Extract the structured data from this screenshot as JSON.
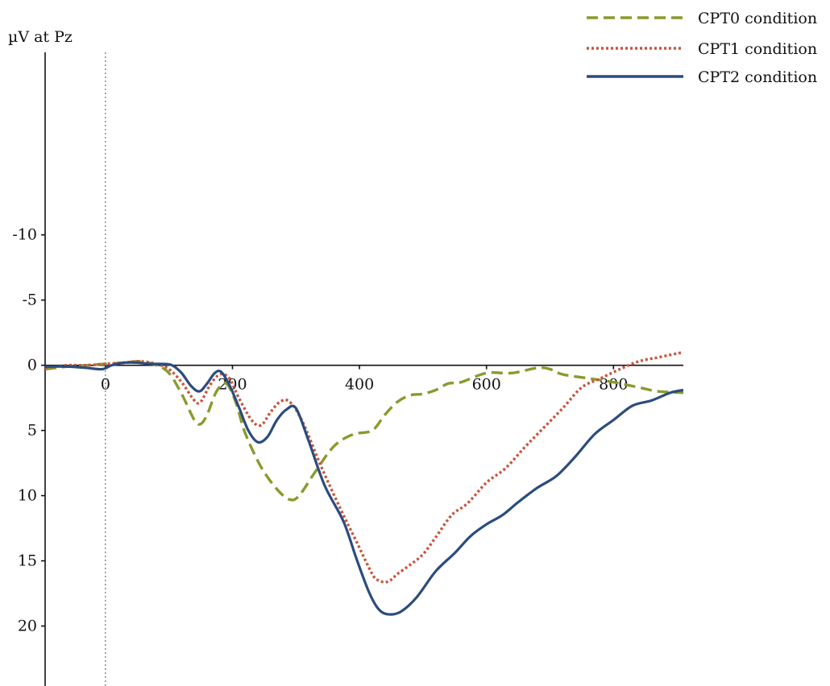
{
  "chart_data": {
    "type": "line",
    "title": "",
    "xlabel": "",
    "ylabel": "µV at Pz",
    "y_axis_inverted": true,
    "xlim": [
      -95,
      910
    ],
    "ylim": [
      -24,
      24.6
    ],
    "x_ticks": [
      0,
      200,
      400,
      600,
      800
    ],
    "x_tick_labels": [
      "0",
      "200",
      "400",
      "600",
      "800"
    ],
    "y_ticks": [
      -10,
      -5,
      0,
      5,
      10,
      15,
      20
    ],
    "y_tick_labels": [
      "-10",
      "-5",
      "0",
      "5",
      "10",
      "15",
      "20"
    ],
    "vertical_reference_line_x": 0,
    "grid": false,
    "legend_position": "top-right",
    "series": [
      {
        "name": "CPT0 condition",
        "color": "#8a9a2c",
        "line_style": "dashed",
        "points": [
          [
            -95,
            0.3
          ],
          [
            -60,
            0.1
          ],
          [
            -30,
            0.0
          ],
          [
            0,
            -0.1
          ],
          [
            30,
            -0.2
          ],
          [
            55,
            -0.3
          ],
          [
            80,
            0.0
          ],
          [
            100,
            0.6
          ],
          [
            120,
            2.2
          ],
          [
            140,
            4.2
          ],
          [
            150,
            4.5
          ],
          [
            160,
            3.8
          ],
          [
            175,
            2.0
          ],
          [
            190,
            1.4
          ],
          [
            205,
            2.8
          ],
          [
            220,
            5.2
          ],
          [
            245,
            7.8
          ],
          [
            270,
            9.5
          ],
          [
            290,
            10.3
          ],
          [
            305,
            10.0
          ],
          [
            330,
            8.2
          ],
          [
            360,
            6.2
          ],
          [
            390,
            5.3
          ],
          [
            420,
            5.0
          ],
          [
            440,
            3.8
          ],
          [
            460,
            2.8
          ],
          [
            480,
            2.3
          ],
          [
            500,
            2.2
          ],
          [
            520,
            1.9
          ],
          [
            540,
            1.4
          ],
          [
            560,
            1.3
          ],
          [
            600,
            0.6
          ],
          [
            640,
            0.6
          ],
          [
            680,
            0.2
          ],
          [
            700,
            0.3
          ],
          [
            720,
            0.7
          ],
          [
            760,
            1.0
          ],
          [
            800,
            1.3
          ],
          [
            840,
            1.7
          ],
          [
            870,
            2.0
          ],
          [
            910,
            2.1
          ]
        ]
      },
      {
        "name": "CPT1 condition",
        "color": "#c8553d",
        "line_style": "dotted",
        "points": [
          [
            -95,
            0.2
          ],
          [
            -60,
            0.0
          ],
          [
            -30,
            0.0
          ],
          [
            0,
            -0.1
          ],
          [
            30,
            -0.2
          ],
          [
            55,
            -0.3
          ],
          [
            80,
            -0.1
          ],
          [
            100,
            0.3
          ],
          [
            120,
            1.3
          ],
          [
            140,
            2.7
          ],
          [
            150,
            2.8
          ],
          [
            165,
            1.5
          ],
          [
            180,
            0.7
          ],
          [
            195,
            1.0
          ],
          [
            210,
            2.5
          ],
          [
            230,
            4.2
          ],
          [
            245,
            4.6
          ],
          [
            260,
            3.6
          ],
          [
            275,
            2.8
          ],
          [
            290,
            2.8
          ],
          [
            310,
            4.3
          ],
          [
            340,
            7.8
          ],
          [
            370,
            11.0
          ],
          [
            395,
            13.5
          ],
          [
            420,
            16.0
          ],
          [
            430,
            16.5
          ],
          [
            445,
            16.6
          ],
          [
            460,
            16.0
          ],
          [
            480,
            15.3
          ],
          [
            500,
            14.5
          ],
          [
            520,
            13.2
          ],
          [
            545,
            11.5
          ],
          [
            570,
            10.6
          ],
          [
            600,
            9.0
          ],
          [
            630,
            7.9
          ],
          [
            660,
            6.3
          ],
          [
            690,
            4.8
          ],
          [
            720,
            3.3
          ],
          [
            750,
            1.7
          ],
          [
            780,
            1.0
          ],
          [
            810,
            0.3
          ],
          [
            840,
            -0.3
          ],
          [
            870,
            -0.6
          ],
          [
            910,
            -1.0
          ]
        ]
      },
      {
        "name": "CPT2 condition",
        "color": "#2b4c7e",
        "line_style": "solid",
        "points": [
          [
            -95,
            0.1
          ],
          [
            -60,
            0.1
          ],
          [
            -30,
            0.2
          ],
          [
            -5,
            0.3
          ],
          [
            10,
            0.0
          ],
          [
            30,
            -0.2
          ],
          [
            50,
            -0.2
          ],
          [
            70,
            -0.1
          ],
          [
            90,
            -0.1
          ],
          [
            105,
            0.0
          ],
          [
            120,
            0.6
          ],
          [
            135,
            1.6
          ],
          [
            148,
            2.0
          ],
          [
            160,
            1.4
          ],
          [
            172,
            0.6
          ],
          [
            182,
            0.5
          ],
          [
            195,
            1.5
          ],
          [
            210,
            3.2
          ],
          [
            225,
            5.0
          ],
          [
            240,
            5.9
          ],
          [
            255,
            5.5
          ],
          [
            270,
            4.2
          ],
          [
            285,
            3.4
          ],
          [
            300,
            3.3
          ],
          [
            320,
            5.8
          ],
          [
            345,
            9.2
          ],
          [
            375,
            12.0
          ],
          [
            395,
            14.8
          ],
          [
            415,
            17.4
          ],
          [
            430,
            18.7
          ],
          [
            445,
            19.1
          ],
          [
            465,
            18.9
          ],
          [
            490,
            17.8
          ],
          [
            520,
            15.8
          ],
          [
            550,
            14.4
          ],
          [
            575,
            13.1
          ],
          [
            600,
            12.2
          ],
          [
            625,
            11.5
          ],
          [
            650,
            10.5
          ],
          [
            680,
            9.4
          ],
          [
            710,
            8.5
          ],
          [
            740,
            7.0
          ],
          [
            770,
            5.3
          ],
          [
            800,
            4.2
          ],
          [
            830,
            3.1
          ],
          [
            860,
            2.7
          ],
          [
            890,
            2.1
          ],
          [
            910,
            1.9
          ]
        ]
      }
    ]
  }
}
